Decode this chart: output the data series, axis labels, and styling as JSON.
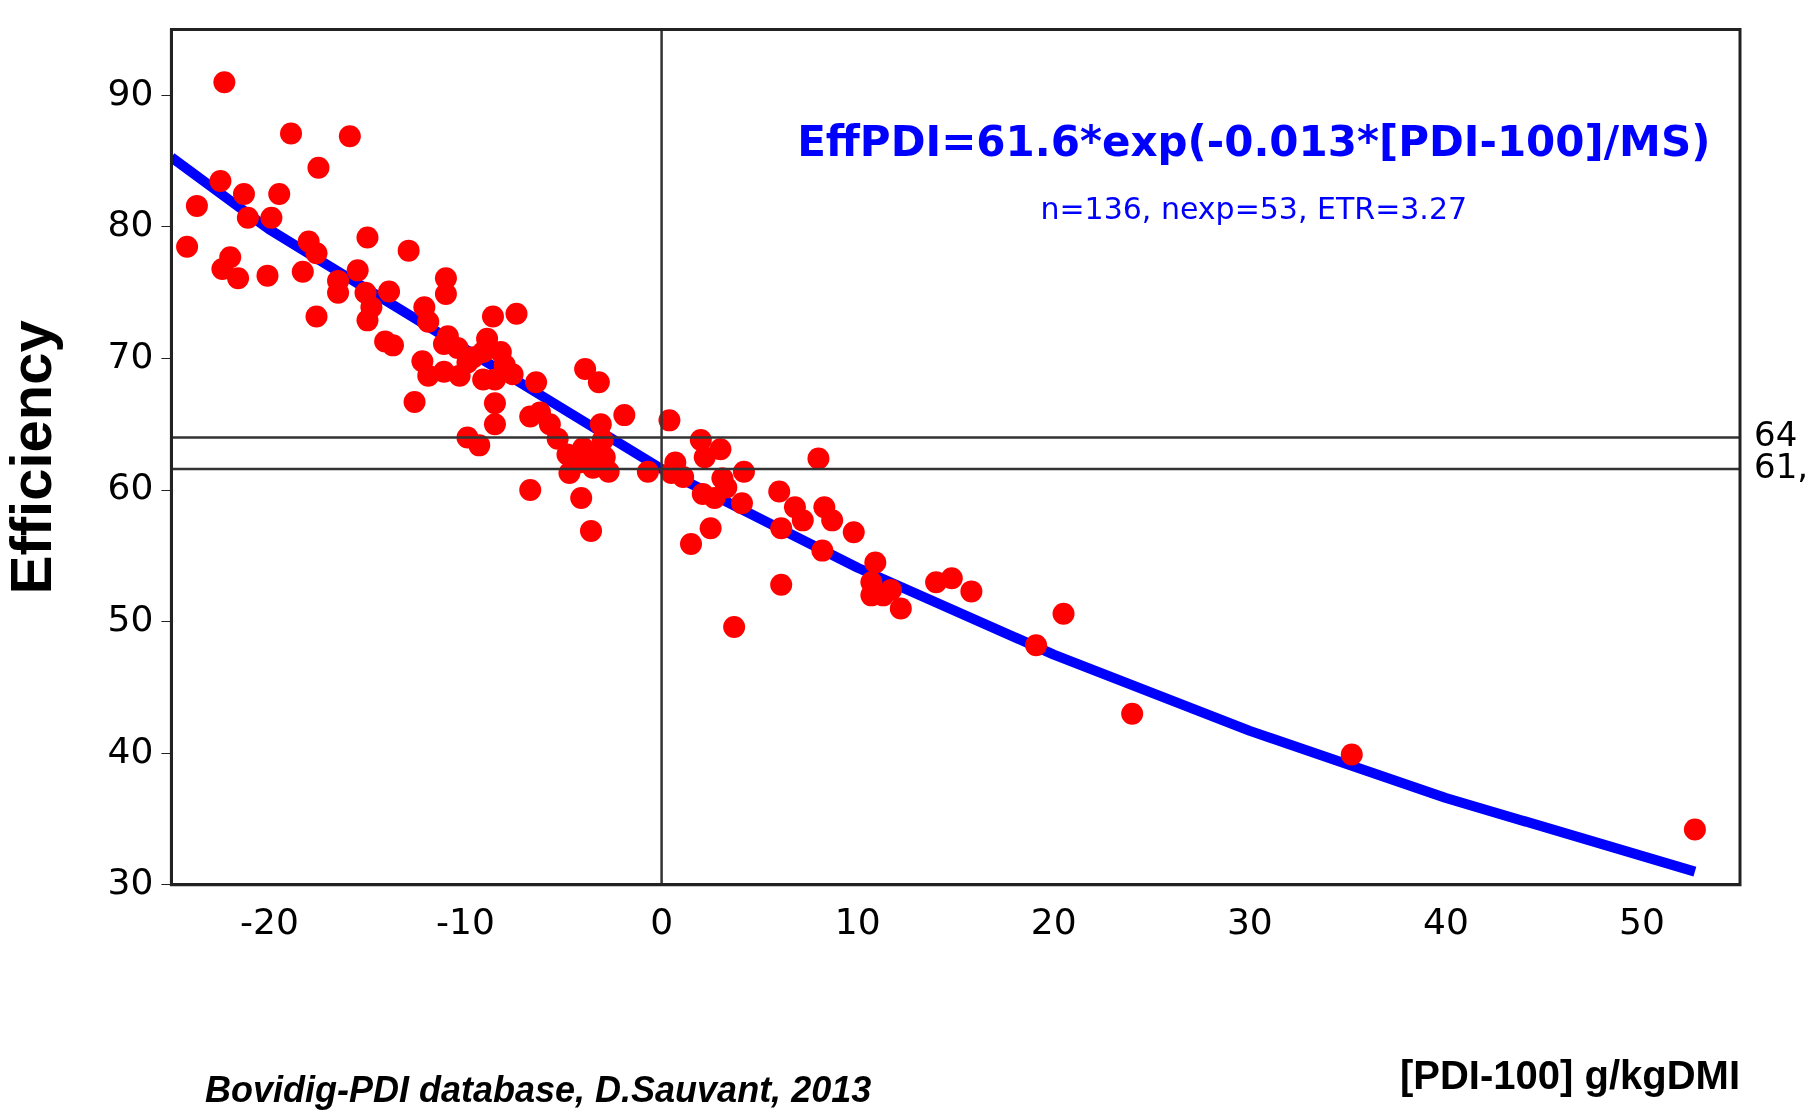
{
  "chart_data": {
    "type": "scatter",
    "xlabel": "[PDI-100] g/kgDMI",
    "ylabel": "Efficiency",
    "annotations": [
      "EffPDI=61.6*exp(-0.013*[PDI-100]/MS)",
      "n=136, nexp=53, ETR=3.27",
      "Bovidig-PDI database, D.Sauvant, 2013",
      "61,"
    ],
    "xlim": [
      -25,
      55
    ],
    "ylim": [
      30,
      95
    ],
    "xticks": [
      -20,
      -10,
      0,
      10,
      20,
      30,
      40,
      50
    ],
    "yticks": [
      30,
      40,
      50,
      60,
      70,
      80,
      90
    ],
    "grid": false,
    "legend": false,
    "ref_lines": [
      {
        "axis": "y",
        "value": 64,
        "label": "64",
        "color": "#333333"
      },
      {
        "axis": "y",
        "value": 61.6,
        "label": null,
        "color": "#333333"
      },
      {
        "axis": "x",
        "value": 0,
        "label": null,
        "color": "#333333"
      }
    ],
    "series": [
      {
        "marker": "circle",
        "color": "#ff0000",
        "x": [
          -22.3,
          -23.7,
          -24.2,
          -22.5,
          -21.3,
          -21.1,
          -22.0,
          -22.4,
          -21.6,
          -19.9,
          -19.5,
          -20.1,
          -18.9,
          -17.5,
          -15.9,
          -18.0,
          -17.6,
          -18.3,
          -17.6,
          -16.5,
          -16.5,
          -15.5,
          -15.0,
          -15.1,
          -15.0,
          -14.8,
          -14.1,
          -13.7,
          -13.9,
          -12.9,
          -12.1,
          -11.9,
          -12.2,
          -11.9,
          -12.6,
          -11.1,
          -11.0,
          -11.0,
          -10.9,
          -11.1,
          -10.4,
          -10.3,
          -9.9,
          -9.6,
          -9.1,
          -8.9,
          -9.1,
          -8.6,
          -8.5,
          -8.2,
          -8.0,
          -7.6,
          -7.4,
          -8.5,
          -8.5,
          -9.9,
          -9.3,
          -6.7,
          -6.4,
          -6.7,
          -6.2,
          -5.7,
          -5.3,
          -4.8,
          -4.7,
          -4.2,
          -4.0,
          -3.9,
          -4.1,
          -3.6,
          -3.5,
          -3.4,
          -3.2,
          -3.1,
          -3.0,
          -2.9,
          -2.7,
          -1.9,
          -0.7,
          0.4,
          0.5,
          0.7,
          1.1,
          1.5,
          2.0,
          2.2,
          2.1,
          2.5,
          2.7,
          3.0,
          3.1,
          3.3,
          3.7,
          4.1,
          4.2,
          6.0,
          6.1,
          6.1,
          6.8,
          7.2,
          8.0,
          8.2,
          8.3,
          8.7,
          9.8,
          10.9,
          10.7,
          10.7,
          11.3,
          11.7,
          12.2,
          14.0,
          14.8,
          15.8,
          19.1,
          20.5,
          24.0,
          35.2,
          52.7
        ],
        "values": [
          91.0,
          81.6,
          78.5,
          83.5,
          82.5,
          80.7,
          77.7,
          76.8,
          76.1,
          80.7,
          82.5,
          76.3,
          87.1,
          84.5,
          86.9,
          78.9,
          78.0,
          76.6,
          73.2,
          75.9,
          75.0,
          76.7,
          79.2,
          75.0,
          72.9,
          73.9,
          71.3,
          71.0,
          75.1,
          78.2,
          73.9,
          72.8,
          69.8,
          68.7,
          66.7,
          69.0,
          76.1,
          74.9,
          71.7,
          71.1,
          70.8,
          68.7,
          69.7,
          70.1,
          70.5,
          71.5,
          68.4,
          73.2,
          68.4,
          70.5,
          69.5,
          68.8,
          73.4,
          66.6,
          65.0,
          64.0,
          63.4,
          60.0,
          68.2,
          65.6,
          65.9,
          65.0,
          63.9,
          62.7,
          61.3,
          62.1,
          63.2,
          69.2,
          59.4,
          56.9,
          61.7,
          62.5,
          68.2,
          65.0,
          63.8,
          62.5,
          61.4,
          65.7,
          61.4,
          65.3,
          61.3,
          62.1,
          61.0,
          55.9,
          63.8,
          62.5,
          59.7,
          57.1,
          59.4,
          63.1,
          60.9,
          60.2,
          49.6,
          59.0,
          61.4,
          59.9,
          57.1,
          52.8,
          58.7,
          57.7,
          62.4,
          55.4,
          58.7,
          57.7,
          56.8,
          54.5,
          53.0,
          52.0,
          52.0,
          52.4,
          51.0,
          53.0,
          53.3,
          52.3,
          48.2,
          50.6,
          43.0,
          39.9,
          34.2
        ]
      },
      {
        "type": "line",
        "marker": "none",
        "color": "#0000ff",
        "x": [
          -25,
          -20,
          0,
          10,
          20,
          30,
          40,
          52.7
        ],
        "values": [
          85.3,
          79.8,
          61.6,
          54.1,
          47.5,
          41.7,
          36.6,
          31.0
        ]
      }
    ]
  }
}
